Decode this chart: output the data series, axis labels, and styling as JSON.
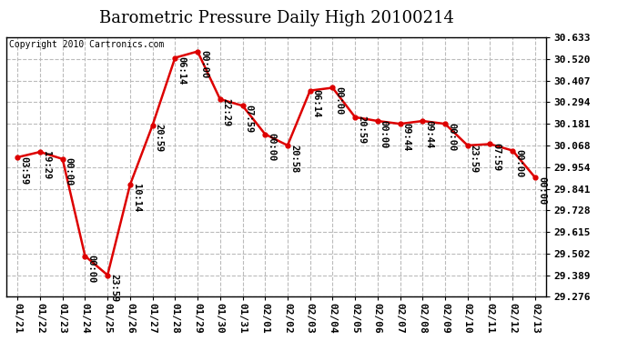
{
  "title": "Barometric Pressure Daily High 20100214",
  "copyright": "Copyright 2010 Cartronics.com",
  "x_labels": [
    "01/21",
    "01/22",
    "01/23",
    "01/24",
    "01/25",
    "01/26",
    "01/27",
    "01/28",
    "01/29",
    "01/30",
    "01/31",
    "02/01",
    "02/02",
    "02/03",
    "02/04",
    "02/05",
    "02/06",
    "02/07",
    "02/08",
    "02/09",
    "02/10",
    "02/11",
    "02/12",
    "02/13"
  ],
  "y_values": [
    30.006,
    30.034,
    29.997,
    29.489,
    29.389,
    29.862,
    30.174,
    30.527,
    30.56,
    30.31,
    30.276,
    30.127,
    30.068,
    30.355,
    30.37,
    30.216,
    30.196,
    30.181,
    30.196,
    30.181,
    30.068,
    30.075,
    30.041,
    29.9
  ],
  "point_labels": [
    "03:59",
    "19:29",
    "00:00",
    "00:00",
    "23:59",
    "10:14",
    "20:59",
    "06:14",
    "00:00",
    "22:29",
    "07:59",
    "00:00",
    "20:58",
    "06:14",
    "00:00",
    "20:59",
    "00:00",
    "09:44",
    "09:44",
    "00:00",
    "23:59",
    "07:59",
    "00:00",
    "00:00"
  ],
  "ylim_min": 29.276,
  "ylim_max": 30.633,
  "yticks": [
    29.276,
    29.389,
    29.502,
    29.615,
    29.728,
    29.841,
    29.954,
    30.068,
    30.181,
    30.294,
    30.407,
    30.52,
    30.633
  ],
  "line_color": "#dd0000",
  "marker_color": "#dd0000",
  "bg_color": "#ffffff",
  "grid_color": "#bbbbbb",
  "title_fontsize": 13,
  "label_fontsize": 8,
  "annotation_fontsize": 7.5,
  "copyright_fontsize": 7
}
